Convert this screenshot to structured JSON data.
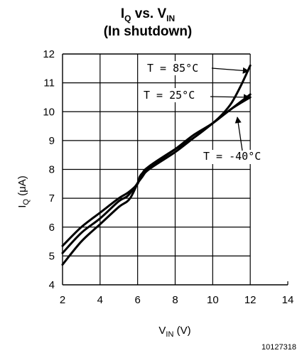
{
  "chart_data": {
    "type": "line",
    "title": {
      "line1_main": "I",
      "line1_sub": "Q",
      "line1_mid": " vs. V",
      "line1_sub2": "IN",
      "line2": "(In shutdown)"
    },
    "xlabel": {
      "main": "V",
      "sub": "IN",
      "rest": " (V)"
    },
    "ylabel": {
      "main": "I",
      "sub": "Q",
      "rest": " (μA)"
    },
    "xlim": [
      2,
      14
    ],
    "ylim": [
      4,
      12
    ],
    "x_ticks": [
      2,
      4,
      6,
      8,
      10,
      12,
      14
    ],
    "y_ticks": [
      4,
      5,
      6,
      7,
      8,
      9,
      10,
      11,
      12
    ],
    "grid": true,
    "series": [
      {
        "name": "T = 85°C",
        "x": [
          2,
          3,
          4,
          5,
          5.6,
          6.2,
          6.6,
          8,
          9,
          10,
          10.5,
          11,
          11.5,
          12
        ],
        "y": [
          4.7,
          5.5,
          6.1,
          6.7,
          7.0,
          7.8,
          8.1,
          8.7,
          9.1,
          9.6,
          9.9,
          10.3,
          10.9,
          11.6
        ]
      },
      {
        "name": "T = 25°C",
        "x": [
          2,
          3,
          4,
          5,
          5.5,
          6.2,
          6.6,
          8,
          9,
          10,
          11,
          12
        ],
        "y": [
          5.1,
          5.8,
          6.3,
          6.9,
          7.1,
          7.7,
          8.0,
          8.6,
          9.1,
          9.6,
          10.1,
          10.6
        ]
      },
      {
        "name": "T = -40°C",
        "x": [
          2,
          3,
          4,
          5,
          5.5,
          6,
          6.3,
          8,
          9,
          10,
          11,
          12
        ],
        "y": [
          5.35,
          6.0,
          6.5,
          7.0,
          7.2,
          7.5,
          7.9,
          8.7,
          9.2,
          9.6,
          10.1,
          10.5
        ]
      }
    ],
    "annotations": [
      "T = 85°C",
      "T = 25°C",
      "T = -40°C"
    ],
    "figure_code": "10127318"
  }
}
